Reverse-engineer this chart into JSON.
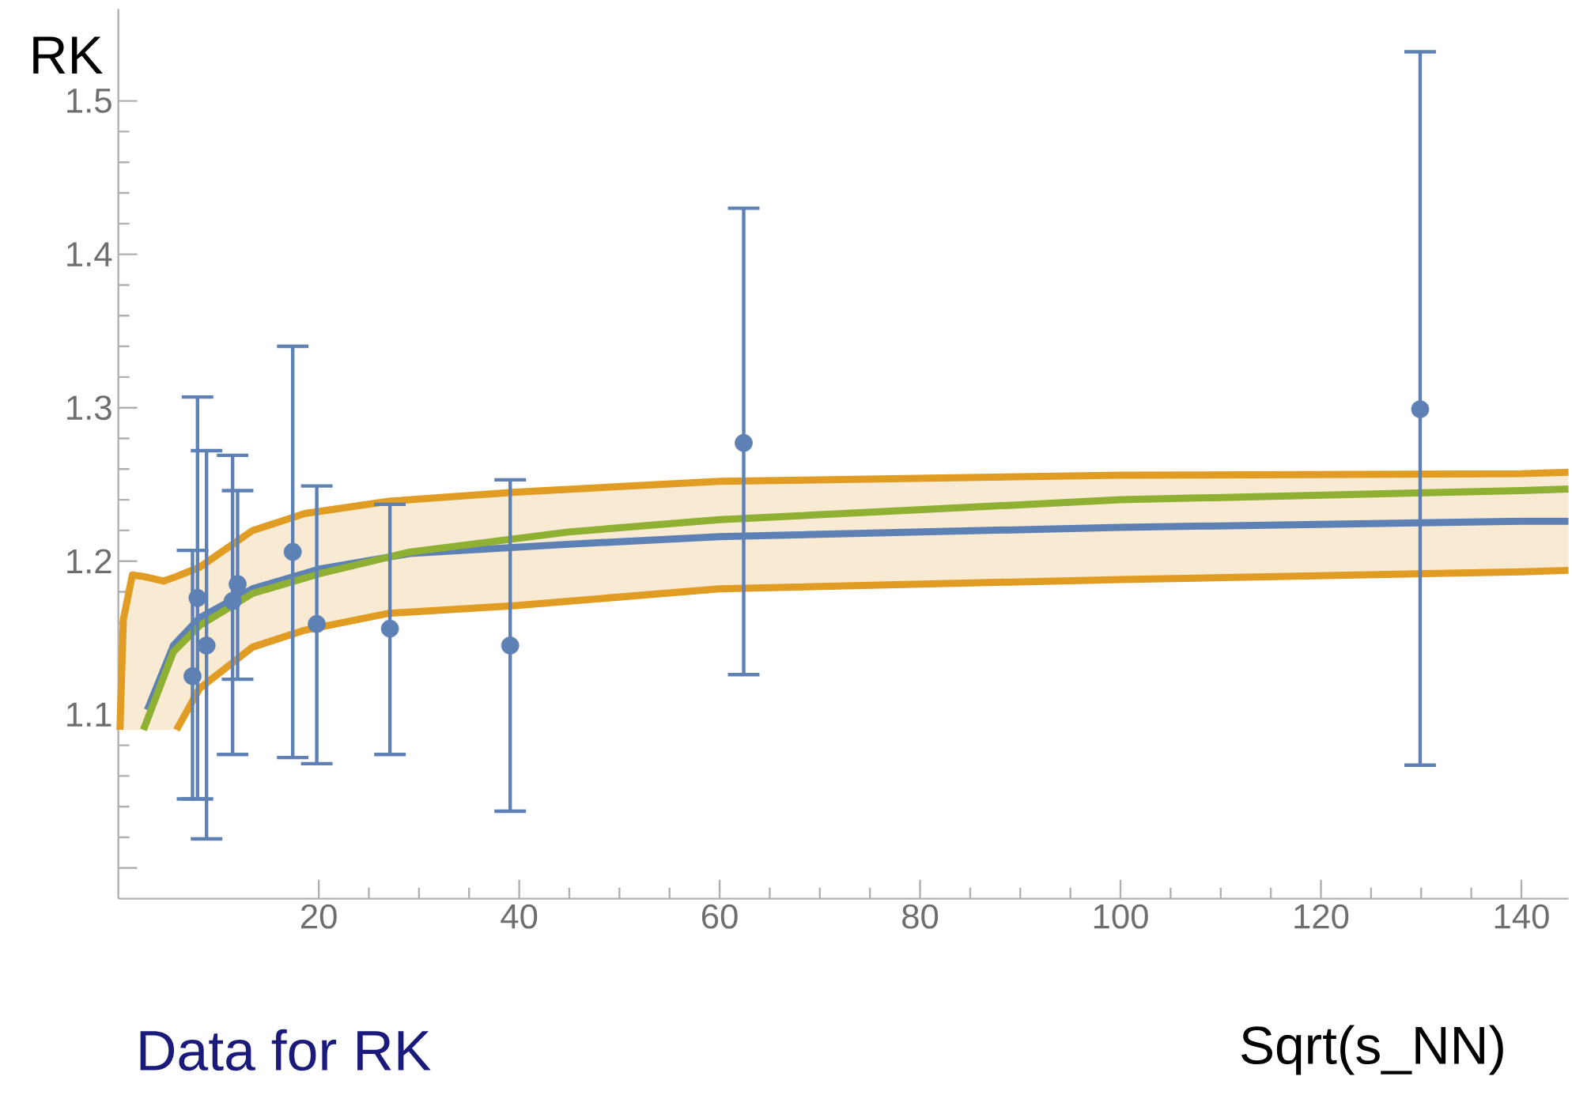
{
  "chart_data": {
    "type": "line",
    "xlabel": "Sqrt(s_NN)",
    "ylabel": "RK",
    "annotations": [
      "Data for RK"
    ],
    "xlim": [
      0,
      144.7
    ],
    "ylim": [
      0.98,
      1.56
    ],
    "xticks": [
      20,
      40,
      60,
      80,
      100,
      120,
      140
    ],
    "yticks": [
      {
        "value": 1.0,
        "label": null
      },
      1.1,
      1.2,
      1.3,
      1.4,
      1.5
    ],
    "grid": false,
    "series": [
      {
        "color": "#e19c24",
        "x": [
          0.16,
          0.5,
          1.4,
          2.5,
          4.5,
          5.8,
          8.1,
          13.4,
          18.6,
          27,
          39.6,
          60,
          100,
          140,
          144.7
        ],
        "values": [
          1.09,
          1.162,
          1.191,
          1.19,
          1.187,
          1.19,
          1.196,
          1.22,
          1.231,
          1.239,
          1.245,
          1.252,
          1.256,
          1.257,
          1.258
        ],
        "lower": [
          1.09,
          1.09,
          1.09,
          1.09,
          1.09,
          1.09,
          1.117,
          1.144,
          1.155,
          1.166,
          1.171,
          1.182,
          1.188,
          1.193,
          1.194
        ],
        "upper": [
          1.09,
          1.162,
          1.191,
          1.19,
          1.187,
          1.19,
          1.196,
          1.22,
          1.231,
          1.239,
          1.245,
          1.252,
          1.256,
          1.257,
          1.258
        ]
      },
      {
        "color": "#e19c24",
        "x": [
          5.8,
          8.1,
          13.4,
          18.6,
          27,
          39.6,
          60,
          100,
          140,
          144.7
        ],
        "values": [
          1.09,
          1.117,
          1.144,
          1.155,
          1.166,
          1.171,
          1.182,
          1.188,
          1.193,
          1.194
        ]
      },
      {
        "color": "#5e81b5",
        "x": [
          2.9,
          5.5,
          8.1,
          13.4,
          20.2,
          29.1,
          44.9,
          60,
          100,
          140,
          144.7
        ],
        "values": [
          1.103,
          1.145,
          1.163,
          1.182,
          1.195,
          1.205,
          1.211,
          1.216,
          1.222,
          1.226,
          1.226
        ]
      },
      {
        "color": "#8fb032",
        "x": [
          2.5,
          5.5,
          8.1,
          13.4,
          20.2,
          29.1,
          44.9,
          60,
          100,
          140,
          144.7
        ],
        "values": [
          1.09,
          1.141,
          1.158,
          1.179,
          1.192,
          1.206,
          1.219,
          1.227,
          1.24,
          1.246,
          1.247
        ]
      },
      {
        "type": "scatter",
        "color": "#5e81b5",
        "x": [
          7.9,
          7.4,
          8.8,
          11.9,
          11.4,
          17.4,
          19.8,
          27.1,
          39.1,
          62.4,
          129.9
        ],
        "values": [
          1.176,
          1.125,
          1.145,
          1.185,
          1.174,
          1.206,
          1.159,
          1.156,
          1.145,
          1.277,
          1.299
        ],
        "errors": [
          [
            1.045,
            1.307
          ],
          [
            1.045,
            1.207
          ],
          [
            1.019,
            1.272
          ],
          [
            1.123,
            1.246
          ],
          [
            1.074,
            1.269
          ],
          [
            1.072,
            1.34
          ],
          [
            1.068,
            1.249
          ],
          [
            1.074,
            1.237
          ],
          [
            1.037,
            1.253
          ],
          [
            1.126,
            1.43
          ],
          [
            1.067,
            1.532
          ]
        ]
      }
    ]
  }
}
